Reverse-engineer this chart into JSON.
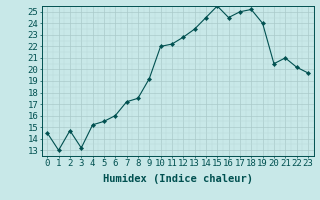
{
  "x": [
    0,
    1,
    2,
    3,
    4,
    5,
    6,
    7,
    8,
    9,
    10,
    11,
    12,
    13,
    14,
    15,
    16,
    17,
    18,
    19,
    20,
    21,
    22,
    23
  ],
  "y": [
    14.5,
    13.0,
    14.7,
    13.2,
    15.2,
    15.5,
    16.0,
    17.2,
    17.5,
    19.2,
    22.0,
    22.2,
    22.8,
    23.5,
    24.5,
    25.5,
    24.5,
    25.0,
    25.2,
    24.0,
    20.5,
    21.0,
    20.2,
    19.7
  ],
  "line_color": "#005050",
  "marker": "D",
  "marker_size": 2.2,
  "bg_color": "#c8e8e8",
  "grid_color_major": "#aacaca",
  "grid_color_minor": "#b8d8d8",
  "xlabel": "Humidex (Indice chaleur)",
  "ylim": [
    12.5,
    25.5
  ],
  "xlim": [
    -0.5,
    23.5
  ],
  "yticks": [
    13,
    14,
    15,
    16,
    17,
    18,
    19,
    20,
    21,
    22,
    23,
    24,
    25
  ],
  "xticks": [
    0,
    1,
    2,
    3,
    4,
    5,
    6,
    7,
    8,
    9,
    10,
    11,
    12,
    13,
    14,
    15,
    16,
    17,
    18,
    19,
    20,
    21,
    22,
    23
  ],
  "xlabel_fontsize": 7.5,
  "tick_fontsize": 6.5
}
